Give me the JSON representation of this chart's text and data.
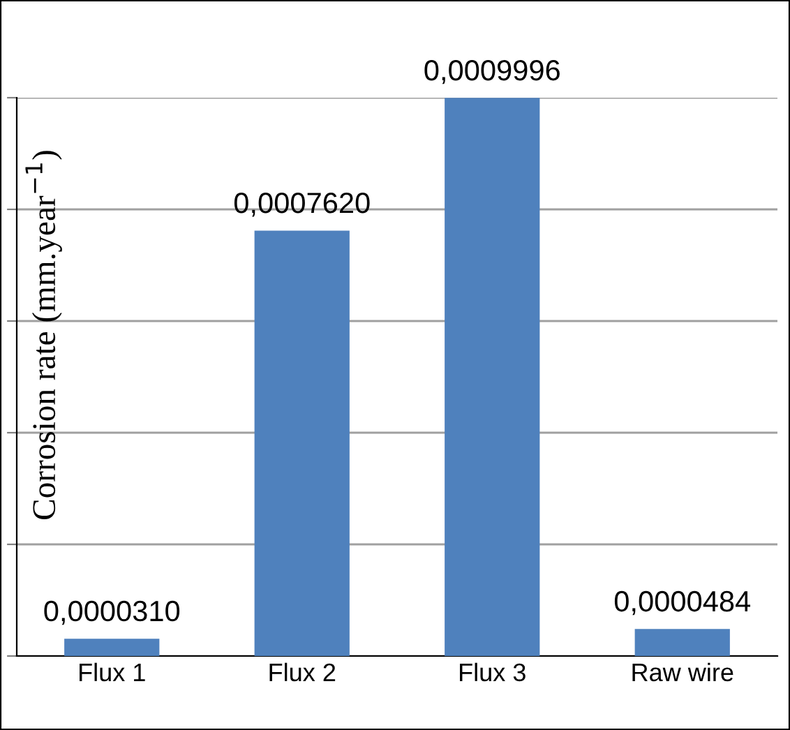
{
  "chart_data": {
    "type": "bar",
    "ylabel": "Corrosion rate (mm.year$^{−1}$)",
    "categories": [
      "Flux 1",
      "Flux 2",
      "Flux 3",
      "Raw wire"
    ],
    "values": [
      3.1e-05,
      0.000762,
      0.0009996,
      4.84e-05
    ],
    "value_labels": [
      "0,0000310",
      "0,0007620",
      "0,0009996",
      "0,0000484"
    ],
    "color": "#4f81bd",
    "ylim": [
      0,
      0.001
    ],
    "yticks": [
      {
        "value": 0,
        "label": null
      },
      {
        "value": 0.0002,
        "label": null
      },
      {
        "value": 0.0004,
        "label": null
      },
      {
        "value": 0.0006,
        "label": null
      },
      {
        "value": 0.0008,
        "label": null
      },
      {
        "value": 0.001,
        "label": null
      }
    ],
    "grid": "y",
    "legend": false
  }
}
